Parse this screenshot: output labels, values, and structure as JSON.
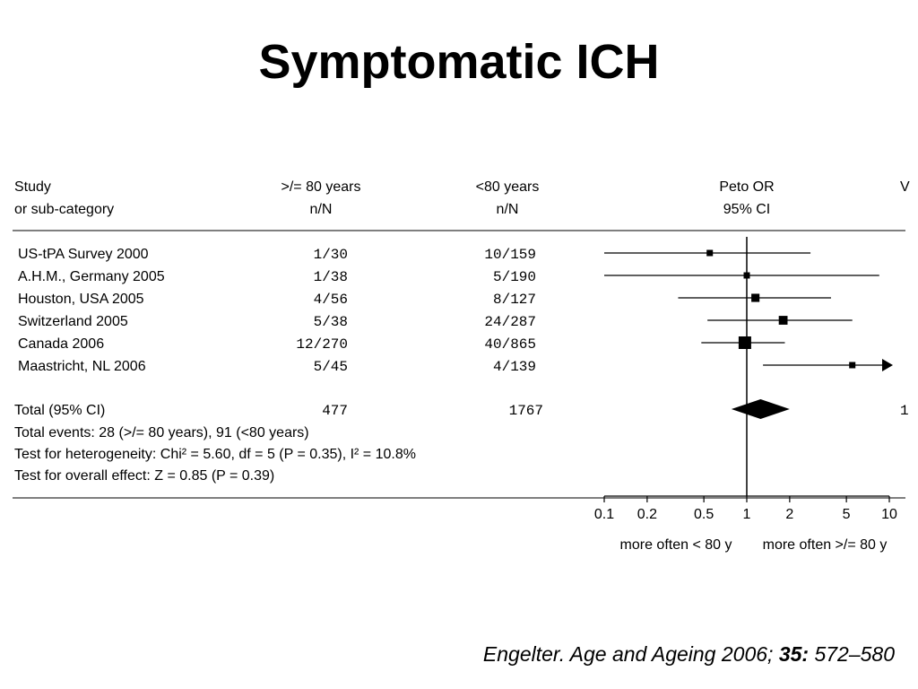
{
  "slide": {
    "title": "Symptomatic ICH",
    "citation": {
      "prefix": "Engelter. Age and Ageing 2006; ",
      "volume": "35:",
      "pages": " 572–580"
    }
  },
  "chart_data": {
    "type": "forest",
    "scale": "log",
    "header": {
      "study_line1": "Study",
      "study_line2": "or sub-category",
      "group1_line1": ">/= 80 years",
      "group1_line2": "n/N",
      "group2_line1": "<80 years",
      "group2_line2": "n/N",
      "effect_line1": "Peto OR",
      "effect_line2": "95% CI",
      "extra_line1": "V"
    },
    "studies": [
      {
        "name": "US-tPA  Survey 2000",
        "g1": "1/30",
        "g2": "10/159",
        "or": 0.55,
        "lo": 0.1,
        "hi": 2.8,
        "weight": 1
      },
      {
        "name": "A.H.M., Germany 2005",
        "g1": "1/38",
        "g2": "5/190",
        "or": 1.0,
        "lo": 0.1,
        "hi": 8.5,
        "weight": 1
      },
      {
        "name": "Houston, USA 2005",
        "g1": "4/56",
        "g2": "8/127",
        "or": 1.15,
        "lo": 0.33,
        "hi": 3.9,
        "weight": 1.3
      },
      {
        "name": "Switzerland 2005",
        "g1": "5/38",
        "g2": "24/287",
        "or": 1.8,
        "lo": 0.53,
        "hi": 5.5,
        "weight": 1.4
      },
      {
        "name": "Canada 2006",
        "g1": "12/270",
        "g2": "40/865",
        "or": 0.97,
        "lo": 0.48,
        "hi": 1.85,
        "weight": 2
      },
      {
        "name": "Maastricht, NL 2006",
        "g1": "5/45",
        "g2": "4/139",
        "or": 5.5,
        "lo": 1.3,
        "hi": 10,
        "weight": 1,
        "arrow": true
      }
    ],
    "total": {
      "label": "Total (95% CI)",
      "g1": "477",
      "g2": "1767",
      "extra": "1",
      "or": 1.25,
      "lo": 0.78,
      "hi": 2.0
    },
    "footnotes": [
      "Total events: 28 (>/= 80 years), 91 (<80 years)",
      "Test for heterogeneity: Chi² = 5.60, df = 5 (P = 0.35), I² = 10.8%",
      "Test for overall effect: Z = 0.85 (P = 0.39)"
    ],
    "xaxis": {
      "ticks": [
        0.1,
        0.2,
        0.5,
        1,
        2,
        5,
        10
      ],
      "tick_labels": [
        "0.1",
        "0.2",
        "0.5",
        "1",
        "2",
        "5",
        "10"
      ],
      "range": [
        0.1,
        10
      ]
    },
    "favours_left": "more often < 80 y",
    "favours_right": "more often >/= 80 y"
  }
}
